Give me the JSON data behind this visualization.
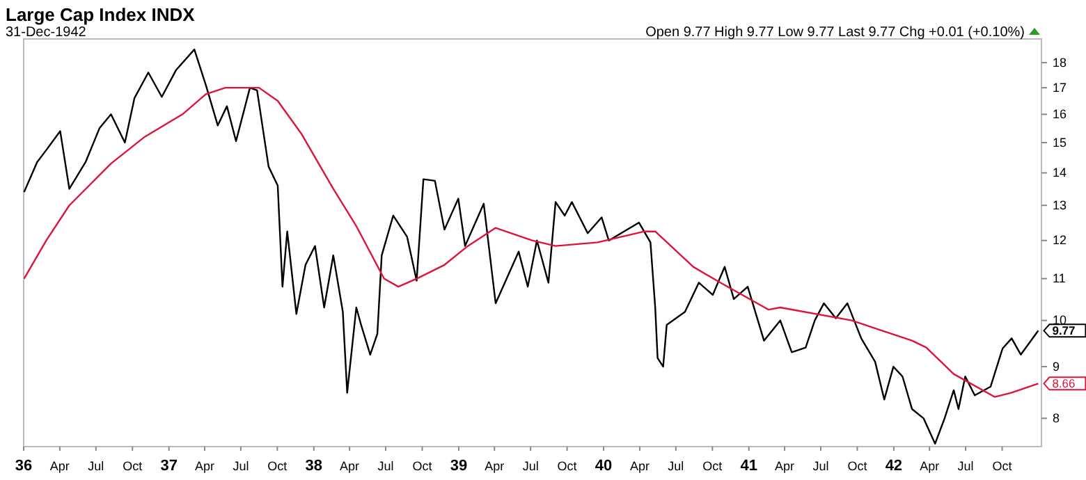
{
  "chart_data": {
    "type": "line",
    "title": "Large Cap Index INDX",
    "subtitle": "31-Dec-1942",
    "annotations": [
      "Open 9.77  High 9.77  Low 9.77  Last 9.77  Chg +0.01 (+0.10%)",
      {
        "text": "9.77",
        "x": "1942-12-31",
        "y": 9.77
      },
      {
        "text": "8.66",
        "x": "1942-12-31",
        "y": 8.66
      }
    ],
    "log": true,
    "grid": false,
    "line_style": "solid",
    "marker": "none",
    "tick_labels": "xy",
    "xlim": [
      "1936-01-01",
      "1943-01-08"
    ],
    "ylim": [
      7.5,
      19
    ],
    "yticks": [
      8,
      9,
      10,
      11,
      12,
      13,
      14,
      15,
      16,
      17,
      18
    ],
    "xticks": [
      {
        "value": "1936-01-01",
        "label": "36"
      },
      {
        "value": "1936-04-01",
        "label": "Apr"
      },
      {
        "value": "1936-07-01",
        "label": "Jul"
      },
      {
        "value": "1936-10-01",
        "label": "Oct"
      },
      {
        "value": "1937-01-01",
        "label": "37"
      },
      {
        "value": "1937-04-01",
        "label": "Apr"
      },
      {
        "value": "1937-07-01",
        "label": "Jul"
      },
      {
        "value": "1937-10-01",
        "label": "Oct"
      },
      {
        "value": "1938-01-01",
        "label": "38"
      },
      {
        "value": "1938-04-01",
        "label": "Apr"
      },
      {
        "value": "1938-07-01",
        "label": "Jul"
      },
      {
        "value": "1938-10-01",
        "label": "Oct"
      },
      {
        "value": "1939-01-01",
        "label": "39"
      },
      {
        "value": "1939-04-01",
        "label": "Apr"
      },
      {
        "value": "1939-07-01",
        "label": "Jul"
      },
      {
        "value": "1939-10-01",
        "label": "Oct"
      },
      {
        "value": "1940-01-01",
        "label": "40"
      },
      {
        "value": "1940-04-01",
        "label": "Apr"
      },
      {
        "value": "1940-07-01",
        "label": "Jul"
      },
      {
        "value": "1940-10-01",
        "label": "Oct"
      },
      {
        "value": "1941-01-01",
        "label": "41"
      },
      {
        "value": "1941-04-01",
        "label": "Apr"
      },
      {
        "value": "1941-07-01",
        "label": "Jul"
      },
      {
        "value": "1941-10-01",
        "label": "Oct"
      },
      {
        "value": "1942-01-01",
        "label": "42"
      },
      {
        "value": "1942-04-01",
        "label": "Apr"
      },
      {
        "value": "1942-07-01",
        "label": "Jul"
      },
      {
        "value": "1942-10-01",
        "label": "Oct"
      }
    ],
    "series": [
      {
        "color": "#000000",
        "x": [
          "1936-01-02",
          "1936-02-04",
          "1936-02-27",
          "1936-04-02",
          "1936-04-25",
          "1936-06-05",
          "1936-07-10",
          "1936-08-08",
          "1936-09-12",
          "1936-10-06",
          "1936-11-10",
          "1936-12-14",
          "1937-01-19",
          "1937-03-06",
          "1937-04-04",
          "1937-05-04",
          "1937-05-27",
          "1937-06-19",
          "1937-07-24",
          "1937-08-11",
          "1937-09-09",
          "1937-10-02",
          "1937-10-14",
          "1937-10-26",
          "1937-11-18",
          "1937-12-11",
          "1938-01-04",
          "1938-01-27",
          "1938-02-19",
          "1938-03-15",
          "1938-03-26",
          "1938-04-18",
          "1938-04-30",
          "1938-05-23",
          "1938-06-10",
          "1938-06-21",
          "1938-07-20",
          "1938-08-24",
          "1938-09-17",
          "1938-10-04",
          "1938-11-02",
          "1938-11-26",
          "1938-12-31",
          "1939-01-17",
          "1939-03-05",
          "1939-04-04",
          "1939-06-01",
          "1939-06-24",
          "1939-07-17",
          "1939-08-15",
          "1939-09-02",
          "1939-09-25",
          "1939-10-13",
          "1939-11-22",
          "1939-12-27",
          "1940-01-14",
          "1940-03-30",
          "1940-04-28",
          "1940-05-10",
          "1940-05-16",
          "1940-05-30",
          "1940-06-08",
          "1940-07-24",
          "1940-08-28",
          "1940-10-02",
          "1940-11-01",
          "1940-11-24",
          "1940-12-29",
          "1941-02-08",
          "1941-03-21",
          "1941-04-19",
          "1941-05-24",
          "1941-06-16",
          "1941-07-09",
          "1941-08-08",
          "1941-09-06",
          "1941-10-11",
          "1941-11-15",
          "1941-12-08",
          "1941-12-31",
          "1942-01-23",
          "1942-02-16",
          "1942-03-17",
          "1942-04-15",
          "1942-05-09",
          "1942-06-01",
          "1942-06-13",
          "1942-06-30",
          "1942-07-24",
          "1942-09-02",
          "1942-10-02",
          "1942-10-25",
          "1942-11-17",
          "1942-12-31"
        ],
        "values": [
          13.4,
          14.35,
          14.75,
          15.4,
          13.5,
          14.35,
          15.5,
          16.0,
          15.0,
          16.6,
          17.6,
          16.65,
          17.7,
          18.55,
          17.1,
          15.6,
          16.3,
          15.05,
          17.0,
          16.9,
          14.2,
          13.6,
          10.8,
          12.25,
          10.15,
          11.35,
          11.85,
          10.3,
          11.6,
          10.2,
          8.48,
          10.3,
          9.9,
          9.25,
          9.7,
          11.6,
          12.7,
          12.1,
          10.95,
          13.8,
          13.75,
          12.3,
          13.2,
          11.85,
          13.05,
          10.4,
          11.7,
          10.8,
          12.0,
          10.9,
          13.1,
          12.7,
          13.1,
          12.2,
          12.65,
          12.0,
          12.5,
          11.95,
          10.3,
          9.18,
          9.0,
          9.9,
          10.2,
          10.9,
          10.6,
          11.3,
          10.5,
          10.8,
          9.55,
          10.0,
          9.3,
          9.4,
          10.0,
          10.4,
          10.05,
          10.4,
          9.6,
          9.1,
          8.35,
          9.0,
          8.8,
          8.17,
          8.0,
          7.55,
          8.0,
          8.53,
          8.17,
          8.8,
          8.43,
          8.6,
          9.38,
          9.6,
          9.25,
          9.77
        ]
      },
      {
        "color": "#dc143c",
        "x": [
          "1936-01-02",
          "1936-02-27",
          "1936-04-25",
          "1936-08-08",
          "1936-11-01",
          "1937-02-04",
          "1937-04-04",
          "1937-05-23",
          "1937-08-16",
          "1937-10-02",
          "1937-12-01",
          "1938-02-19",
          "1938-04-18",
          "1938-06-27",
          "1938-08-02",
          "1938-09-17",
          "1938-11-26",
          "1939-01-24",
          "1939-04-04",
          "1939-07-05",
          "1939-09-02",
          "1939-12-17",
          "1940-04-13",
          "1940-05-10",
          "1940-08-14",
          "1940-10-21",
          "1941-02-19",
          "1941-03-21",
          "1941-09-17",
          "1942-02-16",
          "1942-03-24",
          "1942-06-01",
          "1942-09-12",
          "1942-10-24",
          "1942-12-31"
        ],
        "values": [
          11.0,
          12.0,
          13.0,
          14.3,
          15.2,
          16.0,
          16.75,
          17.0,
          17.0,
          16.5,
          15.3,
          13.5,
          12.4,
          11.0,
          10.8,
          11.0,
          11.35,
          11.85,
          12.35,
          12.0,
          11.85,
          11.95,
          12.25,
          12.25,
          11.3,
          10.9,
          10.25,
          10.3,
          10.0,
          9.55,
          9.4,
          8.85,
          8.4,
          8.48,
          8.66
        ]
      }
    ]
  }
}
